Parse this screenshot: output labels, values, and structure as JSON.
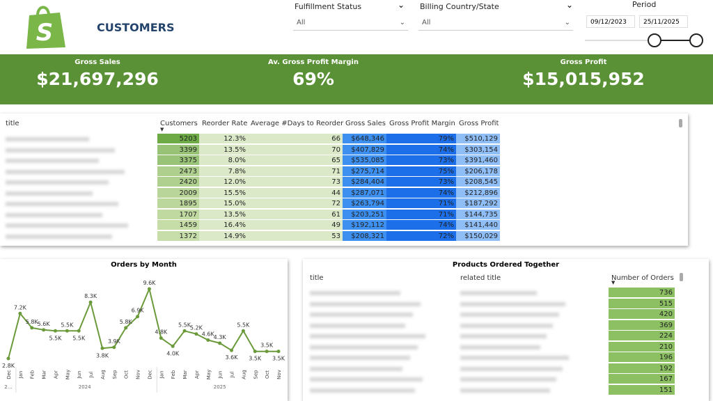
{
  "header": {
    "title": "CUSTOMERS"
  },
  "filters": [
    {
      "label": "Fulfillment Status",
      "value": "All"
    },
    {
      "label": "Billing Country/State",
      "value": "All"
    }
  ],
  "period": {
    "label": "Period",
    "start": "09/12/2023",
    "end": "25/11/2025"
  },
  "kpis": [
    {
      "label": "Gross Sales",
      "value": "$21,697,296"
    },
    {
      "label": "Av. Gross Profit Margin",
      "value": "69%"
    },
    {
      "label": "Gross Profit",
      "value": "$15,015,952"
    }
  ],
  "table": {
    "columns": [
      "title",
      "Customers",
      "Reorder Rate",
      "Average #Days to Reorder",
      "Gross Sales",
      "Gross Profit Margin",
      "Gross Profit"
    ],
    "rows": [
      [
        5203,
        "12.3%",
        66,
        "$648,346",
        "79%",
        "$510,129"
      ],
      [
        3399,
        "13.5%",
        70,
        "$407,829",
        "74%",
        "$303,154"
      ],
      [
        3375,
        "8.0%",
        65,
        "$535,085",
        "73%",
        "$391,460"
      ],
      [
        2473,
        "7.8%",
        71,
        "$275,714",
        "75%",
        "$206,178"
      ],
      [
        2420,
        "12.0%",
        73,
        "$284,404",
        "73%",
        "$208,545"
      ],
      [
        2009,
        "15.5%",
        44,
        "$287,071",
        "74%",
        "$212,896"
      ],
      [
        1895,
        "15.0%",
        72,
        "$263,794",
        "71%",
        "$187,292"
      ],
      [
        1707,
        "13.5%",
        61,
        "$203,251",
        "71%",
        "$144,735"
      ],
      [
        1459,
        "16.4%",
        49,
        "$192,112",
        "74%",
        "$141,440"
      ],
      [
        1372,
        "14.9%",
        53,
        "$208,321",
        "72%",
        "$150,029"
      ]
    ]
  },
  "chart_data": {
    "type": "line",
    "title": "Orders by Month",
    "color": "#6a9a3a",
    "categories": [
      "Dec",
      "Jan",
      "Feb",
      "Mar",
      "Apr",
      "May",
      "Jun",
      "Jul",
      "Aug",
      "Sep",
      "Oct",
      "Nov",
      "Dec",
      "Jan",
      "Feb",
      "Mar",
      "Apr",
      "May",
      "Jun",
      "Jul",
      "Aug",
      "Sep",
      "Oct",
      "Nov"
    ],
    "values": [
      2.8,
      7.2,
      5.8,
      5.6,
      5.5,
      5.5,
      5.5,
      8.3,
      3.8,
      3.9,
      5.8,
      6.9,
      9.6,
      4.8,
      4.0,
      5.5,
      5.2,
      4.6,
      4.3,
      3.6,
      5.5,
      3.5,
      3.5,
      3.5
    ],
    "value_labels": [
      "2.8K",
      "7.2K",
      "5.8K",
      "5.6K",
      "5.5K",
      "5.5K",
      "5.5K",
      "8.3K",
      "3.8K",
      "3.9K",
      "5.8K",
      "6.9K",
      "9.6K",
      "4.8K",
      "4.0K",
      "5.5K",
      "5.2K",
      "4.6K",
      "4.3K",
      "3.6K",
      "5.5K",
      "3.5K",
      "3.5K",
      "3.5K"
    ],
    "x_groups": [
      {
        "label": "2…",
        "count": 1
      },
      {
        "label": "2024",
        "count": 12
      },
      {
        "label": "2025",
        "count": 11
      }
    ]
  },
  "products": {
    "title": "Products Ordered Together",
    "columns": [
      "title",
      "related title",
      "Number of Orders"
    ],
    "orders": [
      736,
      515,
      420,
      369,
      224,
      210,
      196,
      192,
      167,
      151
    ]
  }
}
